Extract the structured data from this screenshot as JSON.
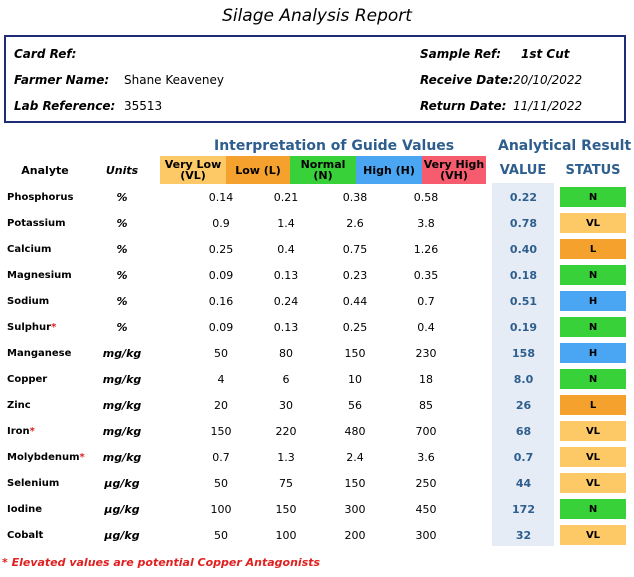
{
  "title": "Silage Analysis Report",
  "info": {
    "card_ref_label": "Card Ref:",
    "card_ref_value": "",
    "farmer_label": "Farmer Name:",
    "farmer_value": "Shane Keaveney",
    "lab_label": "Lab Reference:",
    "lab_value": "35513",
    "sample_label": "Sample Ref:",
    "sample_value": "1st Cut",
    "receive_label": "Receive Date:",
    "receive_value": "20/10/2022",
    "return_label": "Return Date:",
    "return_value": "11/11/2022"
  },
  "sections": {
    "guide": "Interpretation of Guide Values",
    "result": "Analytical Result"
  },
  "headers": {
    "analyte": "Analyte",
    "units": "Units",
    "vl_line1": "Very Low",
    "vl_line2": "(VL)",
    "low": "Low (L)",
    "normal": "Normal (N)",
    "high": "High (H)",
    "vh_line1": "Very High",
    "vh_line2": "(VH)",
    "value": "VALUE",
    "status": "STATUS"
  },
  "colors": {
    "vl": "#fcc966",
    "low": "#f5a12d",
    "normal": "#39d139",
    "high": "#4aa6f2",
    "vh": "#f65b6e",
    "status_N": "#39d139",
    "status_VL": "#fcc966",
    "status_L": "#f5a12d",
    "status_H": "#4aa6f2"
  },
  "rows": [
    {
      "analyte": "Phosphorus",
      "star": "",
      "unit": "%",
      "vl": "0.14",
      "low": "0.21",
      "normal": "0.38",
      "high": "0.58",
      "value": "0.22",
      "status": "N"
    },
    {
      "analyte": "Potassium",
      "star": "",
      "unit": "%",
      "vl": "0.9",
      "low": "1.4",
      "normal": "2.6",
      "high": "3.8",
      "value": "0.78",
      "status": "VL"
    },
    {
      "analyte": "Calcium",
      "star": "",
      "unit": "%",
      "vl": "0.25",
      "low": "0.4",
      "normal": "0.75",
      "high": "1.26",
      "value": "0.40",
      "status": "L"
    },
    {
      "analyte": "Magnesium",
      "star": "",
      "unit": "%",
      "vl": "0.09",
      "low": "0.13",
      "normal": "0.23",
      "high": "0.35",
      "value": "0.18",
      "status": "N"
    },
    {
      "analyte": "Sodium",
      "star": "",
      "unit": "%",
      "vl": "0.16",
      "low": "0.24",
      "normal": "0.44",
      "high": "0.7",
      "value": "0.51",
      "status": "H"
    },
    {
      "analyte": "Sulphur",
      "star": "*",
      "unit": "%",
      "vl": "0.09",
      "low": "0.13",
      "normal": "0.25",
      "high": "0.4",
      "value": "0.19",
      "status": "N"
    },
    {
      "analyte": "Manganese",
      "star": "",
      "unit": "mg/kg",
      "vl": "50",
      "low": "80",
      "normal": "150",
      "high": "230",
      "value": "158",
      "status": "H"
    },
    {
      "analyte": "Copper",
      "star": "",
      "unit": "mg/kg",
      "vl": "4",
      "low": "6",
      "normal": "10",
      "high": "18",
      "value": "8.0",
      "status": "N"
    },
    {
      "analyte": "Zinc",
      "star": "",
      "unit": "mg/kg",
      "vl": "20",
      "low": "30",
      "normal": "56",
      "high": "85",
      "value": "26",
      "status": "L"
    },
    {
      "analyte": "Iron",
      "star": "*",
      "unit": "mg/kg",
      "vl": "150",
      "low": "220",
      "normal": "480",
      "high": "700",
      "value": "68",
      "status": "VL"
    },
    {
      "analyte": "Molybdenum",
      "star": "*",
      "unit": "mg/kg",
      "vl": "0.7",
      "low": "1.3",
      "normal": "2.4",
      "high": "3.6",
      "value": "0.7",
      "status": "VL"
    },
    {
      "analyte": "Selenium",
      "star": "",
      "unit": "µg/kg",
      "vl": "50",
      "low": "75",
      "normal": "150",
      "high": "250",
      "value": "44",
      "status": "VL"
    },
    {
      "analyte": "Iodine",
      "star": "",
      "unit": "µg/kg",
      "vl": "100",
      "low": "150",
      "normal": "300",
      "high": "450",
      "value": "172",
      "status": "N"
    },
    {
      "analyte": "Cobalt",
      "star": "",
      "unit": "µg/kg",
      "vl": "50",
      "low": "100",
      "normal": "200",
      "high": "300",
      "value": "32",
      "status": "VL"
    }
  ],
  "footnote": "* Elevated values are potential Copper Antagonists"
}
